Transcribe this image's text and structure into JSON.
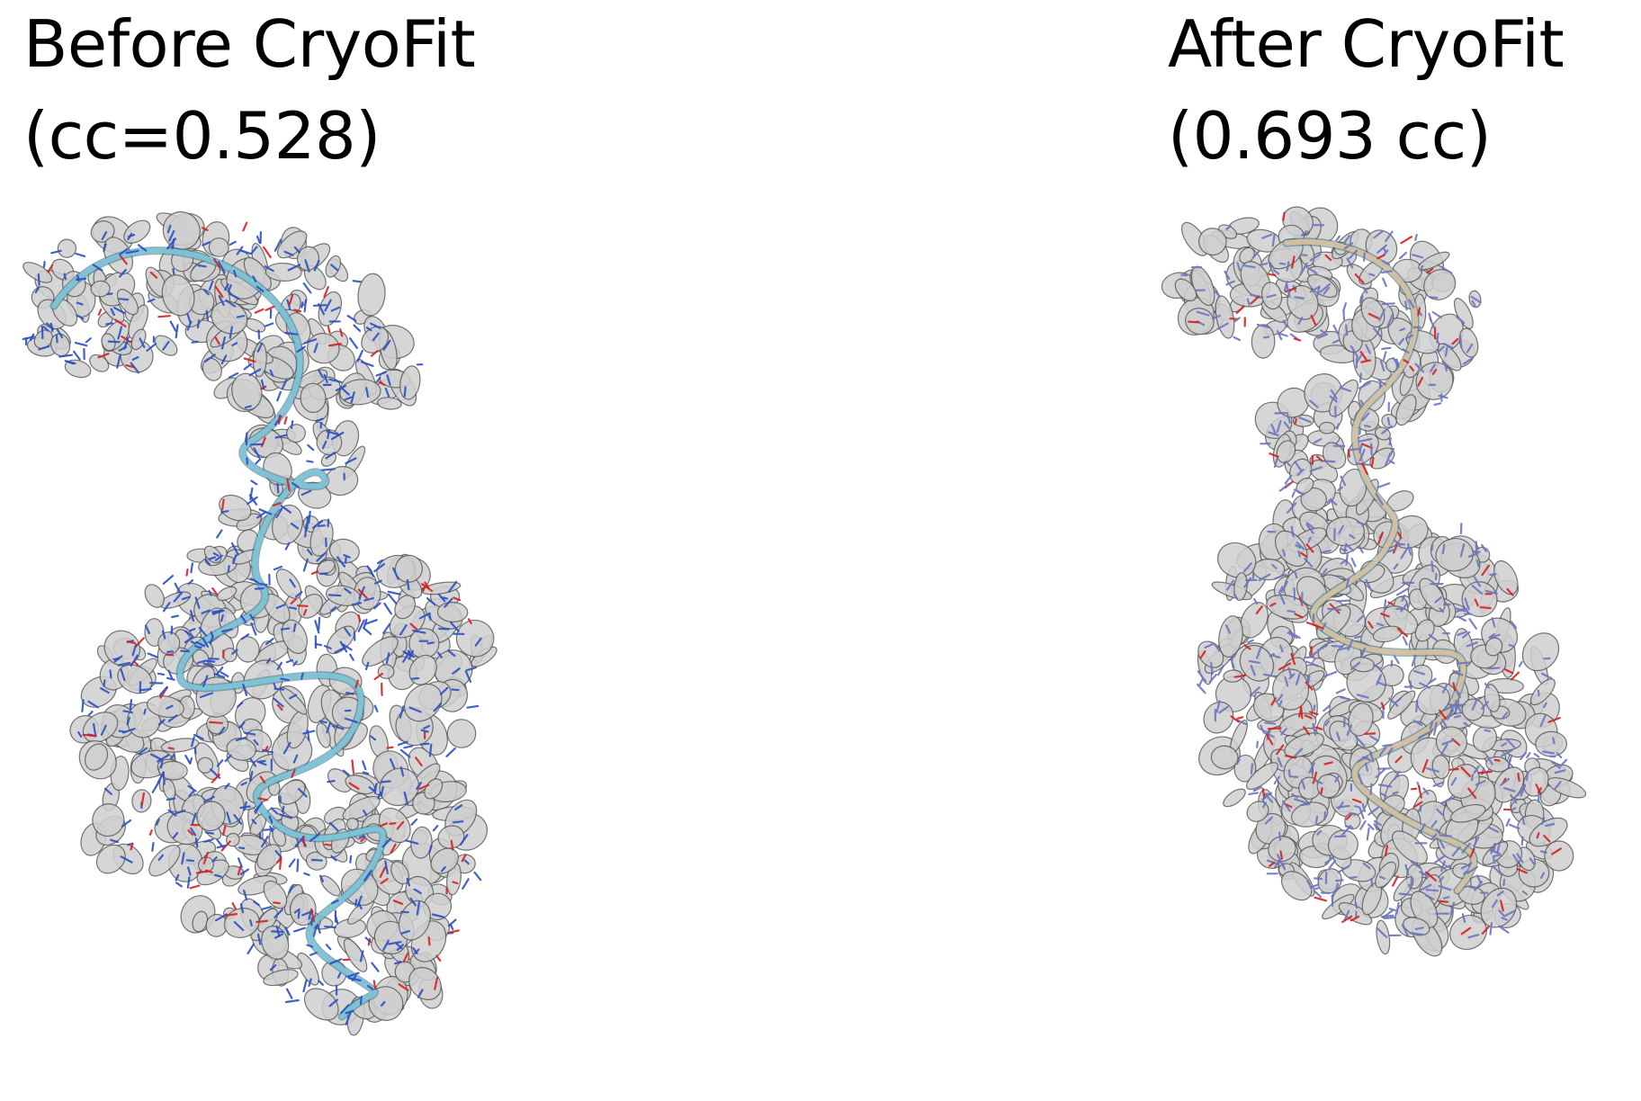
{
  "panels": [
    {
      "id": "before",
      "title": "Before CryoFit",
      "cc_label": "(cc=0.528)",
      "ribbon_color": "#7ec6dc",
      "atom_color": "#2b4fc4"
    },
    {
      "id": "after",
      "title": "After CryoFit",
      "cc_label": "(0.693 cc)",
      "ribbon_color": "#d9c4a3",
      "atom_color": "#6a76c0"
    }
  ],
  "colors": {
    "density_fill": "#cfcfcf",
    "density_edge": "#4a4a4a",
    "oxygen": "#d62020"
  }
}
